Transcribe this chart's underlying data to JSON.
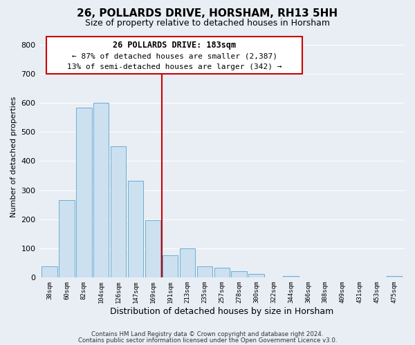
{
  "title": "26, POLLARDS DRIVE, HORSHAM, RH13 5HH",
  "subtitle": "Size of property relative to detached houses in Horsham",
  "xlabel": "Distribution of detached houses by size in Horsham",
  "ylabel": "Number of detached properties",
  "footer_line1": "Contains HM Land Registry data © Crown copyright and database right 2024.",
  "footer_line2": "Contains public sector information licensed under the Open Government Licence v3.0.",
  "bar_labels": [
    "38sqm",
    "60sqm",
    "82sqm",
    "104sqm",
    "126sqm",
    "147sqm",
    "169sqm",
    "191sqm",
    "213sqm",
    "235sqm",
    "257sqm",
    "278sqm",
    "300sqm",
    "322sqm",
    "344sqm",
    "366sqm",
    "388sqm",
    "409sqm",
    "431sqm",
    "453sqm",
    "475sqm"
  ],
  "bar_values": [
    38,
    265,
    585,
    600,
    452,
    332,
    197,
    75,
    99,
    38,
    32,
    20,
    12,
    0,
    5,
    0,
    0,
    0,
    0,
    0,
    5
  ],
  "bar_color": "#cce0f0",
  "bar_edge_color": "#6aafd6",
  "vline_color": "#cc0000",
  "vline_x_index": 7,
  "annotation_title": "26 POLLARDS DRIVE: 183sqm",
  "annotation_line1": "← 87% of detached houses are smaller (2,387)",
  "annotation_line2": "13% of semi-detached houses are larger (342) →",
  "annotation_box_facecolor": "#ffffff",
  "annotation_box_edgecolor": "#cc0000",
  "ylim_max": 830,
  "yticks": [
    0,
    100,
    200,
    300,
    400,
    500,
    600,
    700,
    800
  ],
  "bg_color": "#e8eef4",
  "plot_bg_color": "#e8eef4",
  "grid_color": "#ffffff",
  "title_fontsize": 11,
  "subtitle_fontsize": 9
}
